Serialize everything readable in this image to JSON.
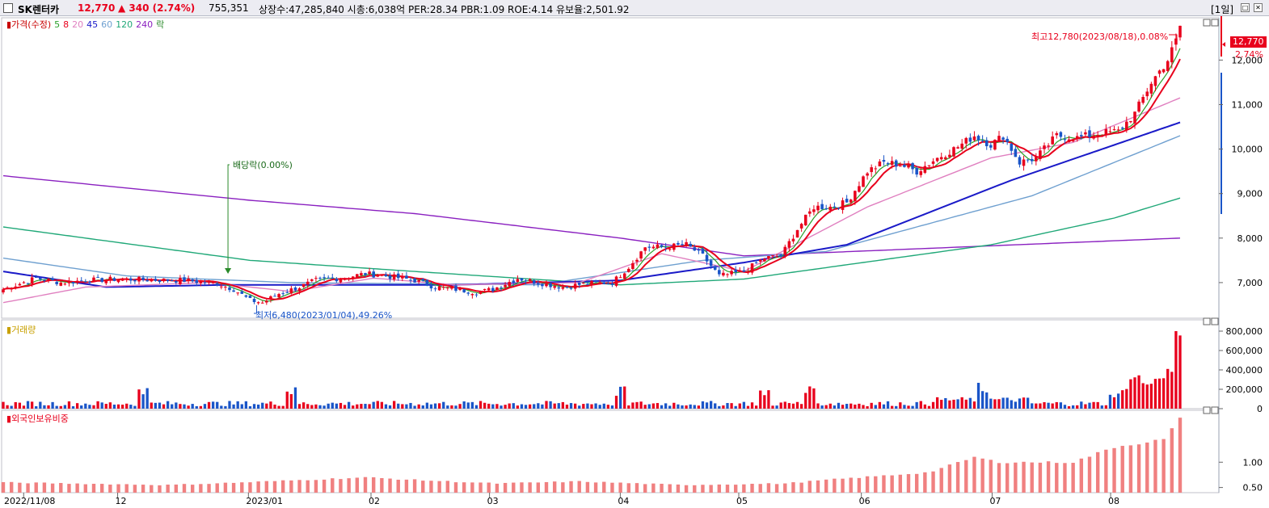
{
  "header": {
    "name": "SK렌터카",
    "price": "12,770",
    "change": "▲ 340 (2.74%)",
    "volume": "755,351",
    "info": "상장수:47,285,840 시총:6,038억 PER:28.34 PBR:1.09 ROE:4.14 유보율:2,501.92",
    "period": "[1일]",
    "colors": {
      "up": "#e8001c",
      "down": "#1a55c8"
    }
  },
  "price_panel": {
    "legend": [
      {
        "label": "가격(수정)",
        "color": "#c80000"
      },
      {
        "label": "5",
        "color": "#2aa02a"
      },
      {
        "label": "8",
        "color": "#e8001c"
      },
      {
        "label": "20",
        "color": "#e080c0"
      },
      {
        "label": "45",
        "color": "#1a1ac8"
      },
      {
        "label": "60",
        "color": "#6fa0d0"
      },
      {
        "label": "120",
        "color": "#20a878"
      },
      {
        "label": "240",
        "color": "#8a20c0"
      },
      {
        "label": "락",
        "color": "#2a8a2a"
      }
    ],
    "high_annotation": "최고12,780(2023/08/18),0.08%",
    "low_annotation": "최저6,480(2023/01/04),49.26%",
    "dividend_annotation": "배당락(0.00%)",
    "last_price_tag": "12,770",
    "last_change_tag": "2.74%"
  },
  "volume_panel": {
    "legend": "거래량"
  },
  "foreign_panel": {
    "legend": "외국인보유비중"
  },
  "chart_data": [
    {
      "type": "candlestick",
      "title": "가격(수정)",
      "x_start": "2022/11/03",
      "x_end": "2023/08/18",
      "x_ticks": [
        "2022/11/08",
        "12",
        "2023/01",
        "02",
        "03",
        "04",
        "05",
        "06",
        "07",
        "08"
      ],
      "y_ticks": [
        "7,000",
        "8,000",
        "9,000",
        "10,000",
        "11,000",
        "12,000"
      ],
      "ylim": [
        6200,
        12950
      ],
      "last_close": 12770,
      "high": {
        "value": 12780,
        "date": "2023/08/18"
      },
      "low": {
        "value": 6480,
        "date": "2023/01/04"
      },
      "close_anchors": [
        [
          0,
          6850
        ],
        [
          8,
          7100
        ],
        [
          14,
          7000
        ],
        [
          20,
          7050
        ],
        [
          28,
          7080
        ],
        [
          36,
          7060
        ],
        [
          44,
          7050
        ],
        [
          52,
          6980
        ],
        [
          56,
          6850
        ],
        [
          60,
          6600
        ],
        [
          63,
          6550
        ],
        [
          67,
          6750
        ],
        [
          72,
          6900
        ],
        [
          76,
          7050
        ],
        [
          82,
          7100
        ],
        [
          88,
          7200
        ],
        [
          93,
          7150
        ],
        [
          100,
          7050
        ],
        [
          105,
          6900
        ],
        [
          110,
          6850
        ],
        [
          115,
          6780
        ],
        [
          119,
          6850
        ],
        [
          125,
          7100
        ],
        [
          130,
          7000
        ],
        [
          136,
          6900
        ],
        [
          142,
          6980
        ],
        [
          148,
          7000
        ],
        [
          152,
          7350
        ],
        [
          156,
          7800
        ],
        [
          161,
          7800
        ],
        [
          166,
          7850
        ],
        [
          170,
          7600
        ],
        [
          174,
          7150
        ],
        [
          180,
          7250
        ],
        [
          185,
          7550
        ],
        [
          189,
          7600
        ],
        [
          193,
          8200
        ],
        [
          197,
          8700
        ],
        [
          201,
          8700
        ],
        [
          205,
          8800
        ],
        [
          210,
          9500
        ],
        [
          214,
          9700
        ],
        [
          218,
          9650
        ],
        [
          222,
          9500
        ],
        [
          227,
          9800
        ],
        [
          232,
          10050
        ],
        [
          236,
          10300
        ],
        [
          240,
          10100
        ],
        [
          243,
          10300
        ],
        [
          247,
          9700
        ],
        [
          251,
          9800
        ],
        [
          256,
          10300
        ],
        [
          261,
          10250
        ],
        [
          266,
          10350
        ],
        [
          271,
          10400
        ],
        [
          275,
          10800
        ],
        [
          279,
          11500
        ],
        [
          283,
          12000
        ],
        [
          285,
          12430
        ],
        [
          286,
          12770
        ]
      ],
      "moving_averages": [
        {
          "name": "240",
          "points": [
            [
              0,
              9400
            ],
            [
              60,
              8850
            ],
            [
              100,
              8550
            ],
            [
              150,
              8000
            ],
            [
              180,
              7600
            ],
            [
              286,
              8000
            ]
          ]
        },
        {
          "name": "120",
          "points": [
            [
              0,
              8250
            ],
            [
              60,
              7500
            ],
            [
              100,
              7250
            ],
            [
              150,
              6950
            ],
            [
              180,
              7080
            ],
            [
              240,
              7850
            ],
            [
              270,
              8450
            ],
            [
              286,
              8900
            ]
          ]
        },
        {
          "name": "60",
          "points": [
            [
              0,
              7550
            ],
            [
              30,
              7150
            ],
            [
              70,
              7000
            ],
            [
              130,
              6950
            ],
            [
              170,
              7500
            ],
            [
              200,
              7700
            ],
            [
              250,
              8950
            ],
            [
              286,
              10300
            ]
          ]
        },
        {
          "name": "45",
          "points": [
            [
              0,
              7250
            ],
            [
              25,
              6900
            ],
            [
              55,
              6950
            ],
            [
              110,
              6950
            ],
            [
              150,
              7050
            ],
            [
              180,
              7450
            ],
            [
              205,
              7850
            ],
            [
              245,
              9300
            ],
            [
              286,
              10600
            ]
          ]
        },
        {
          "name": "20",
          "points": [
            [
              0,
              6550
            ],
            [
              20,
              6900
            ],
            [
              50,
              7000
            ],
            [
              70,
              6800
            ],
            [
              90,
              7100
            ],
            [
              110,
              6950
            ],
            [
              140,
              7000
            ],
            [
              160,
              7650
            ],
            [
              180,
              7250
            ],
            [
              210,
              8700
            ],
            [
              240,
              9800
            ],
            [
              260,
              10150
            ],
            [
              286,
              11150
            ]
          ]
        }
      ],
      "dividend_date": "2022/12/28"
    },
    {
      "type": "bar",
      "title": "거래량",
      "y_ticks": [
        "0",
        "200,000",
        "400,000",
        "600,000",
        "800,000"
      ],
      "ylim": [
        0,
        850000
      ],
      "last_values": [
        410000,
        380000,
        800000,
        755351
      ]
    },
    {
      "type": "bar",
      "title": "외국인보유비중",
      "y_ticks": [
        "0.50",
        "1.00"
      ],
      "ylim": [
        0.43,
        1.93
      ],
      "anchors": [
        [
          0,
          0.6
        ],
        [
          40,
          0.55
        ],
        [
          58,
          0.6
        ],
        [
          88,
          0.7
        ],
        [
          100,
          0.65
        ],
        [
          120,
          0.58
        ],
        [
          140,
          0.62
        ],
        [
          165,
          0.55
        ],
        [
          190,
          0.58
        ],
        [
          200,
          0.65
        ],
        [
          225,
          0.8
        ],
        [
          236,
          1.1
        ],
        [
          242,
          1.0
        ],
        [
          260,
          1.0
        ],
        [
          270,
          1.3
        ],
        [
          282,
          1.45
        ],
        [
          286,
          1.85
        ]
      ]
    }
  ]
}
